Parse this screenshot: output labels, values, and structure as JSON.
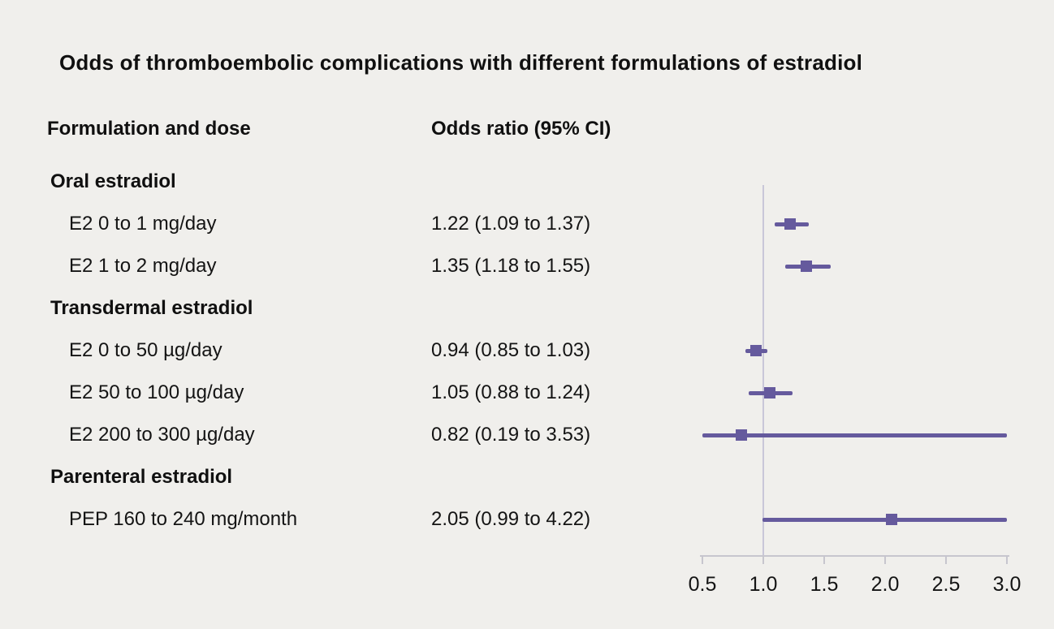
{
  "chart_data": {
    "type": "forest",
    "title": "Odds of thromboembolic complications with different formulations of estradiol",
    "columns": {
      "label": "Formulation and dose",
      "value": "Odds ratio (95% CI)"
    },
    "xlim": [
      0.5,
      3.0
    ],
    "xticks": [
      0.5,
      1.0,
      1.5,
      2.0,
      2.5,
      3.0
    ],
    "reference_line": 1.0,
    "colors": {
      "marker": "#655a9d",
      "ci_line": "#655a9d",
      "reference_line": "#c9c7d8",
      "axis": "#c7c6ce",
      "background": "#f0efec",
      "text": "#141414"
    },
    "rows": [
      {
        "type": "group",
        "label": "Oral estradiol"
      },
      {
        "type": "item",
        "label": "E2 0 to 1 mg/day",
        "display": "1.22 (1.09 to 1.37)",
        "est": 1.22,
        "lo": 1.09,
        "hi": 1.37
      },
      {
        "type": "item",
        "label": "E2 1 to 2 mg/day",
        "display": "1.35 (1.18 to 1.55)",
        "est": 1.35,
        "lo": 1.18,
        "hi": 1.55
      },
      {
        "type": "group",
        "label": "Transdermal estradiol"
      },
      {
        "type": "item",
        "label": "E2 0 to 50 µg/day",
        "display": "0.94 (0.85 to 1.03)",
        "est": 0.94,
        "lo": 0.85,
        "hi": 1.03
      },
      {
        "type": "item",
        "label": "E2 50 to 100 µg/day",
        "display": "1.05 (0.88 to 1.24)",
        "est": 1.05,
        "lo": 0.88,
        "hi": 1.24
      },
      {
        "type": "item",
        "label": "E2 200 to 300 µg/day",
        "display": "0.82 (0.19 to 3.53)",
        "est": 0.82,
        "lo": 0.19,
        "hi": 3.53
      },
      {
        "type": "group",
        "label": "Parenteral estradiol"
      },
      {
        "type": "item",
        "label": "PEP 160 to 240 mg/month",
        "display": "2.05 (0.99 to 4.22)",
        "est": 2.05,
        "lo": 0.99,
        "hi": 4.22
      }
    ]
  }
}
